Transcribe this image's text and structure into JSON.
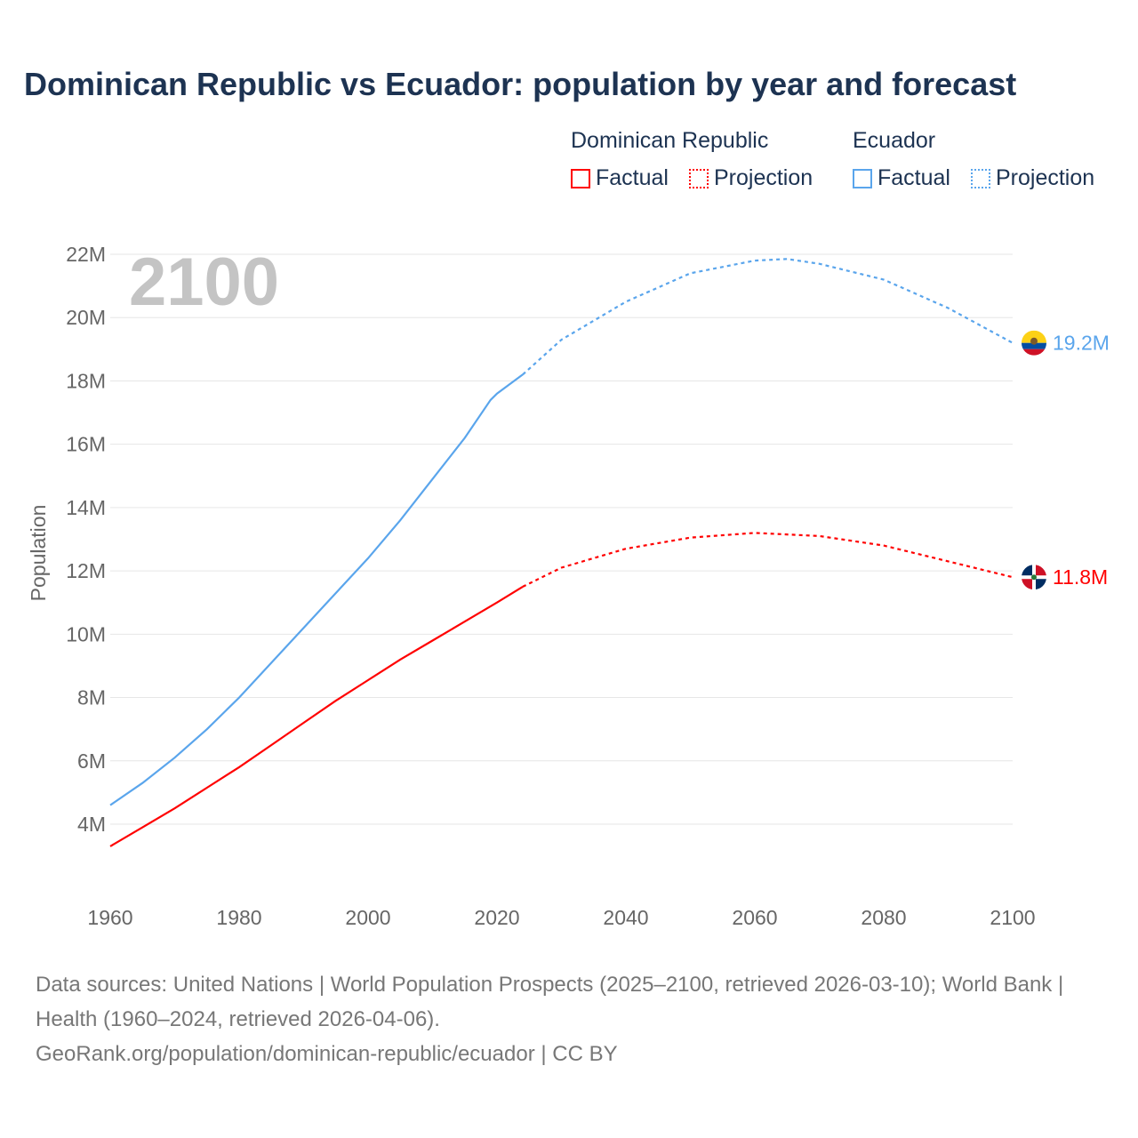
{
  "title": "Dominican Republic vs Ecuador: population by year and forecast",
  "legend": {
    "groups": [
      {
        "name": "Dominican Republic",
        "color": "#ff0000",
        "items": [
          "Factual",
          "Projection"
        ]
      },
      {
        "name": "Ecuador",
        "color": "#5aa5ec",
        "items": [
          "Factual",
          "Projection"
        ]
      }
    ]
  },
  "year_label": "2100",
  "footer": {
    "sources": "Data sources: United Nations | World Population Prospects (2025–2100, retrieved 2026-03-10); World Bank | Health (1960–2024, retrieved 2026-04-06).",
    "credit": "GeoRank.org/population/dominican-republic/ecuador | CC BY"
  },
  "chart_data": {
    "type": "line",
    "title": "Dominican Republic vs Ecuador: population by year and forecast",
    "xlabel": "",
    "ylabel": "Population",
    "xlim": [
      1960,
      2100
    ],
    "ylim": [
      2,
      22
    ],
    "x_ticks": [
      "1960",
      "1980",
      "2000",
      "2020",
      "2040",
      "2060",
      "2080",
      "2100"
    ],
    "y_ticks": [
      "4M",
      "6M",
      "8M",
      "10M",
      "12M",
      "14M",
      "16M",
      "18M",
      "20M",
      "22M"
    ],
    "grid": true,
    "legend_placement": "top-right",
    "series": [
      {
        "name": "Ecuador",
        "color": "#5aa5ec",
        "end_label": "19.2M",
        "factual": {
          "x": [
            1960,
            1965,
            1970,
            1975,
            1980,
            1985,
            1990,
            1995,
            2000,
            2005,
            2010,
            2015,
            2019,
            2020,
            2024
          ],
          "y": [
            4.6,
            5.3,
            6.1,
            7.0,
            8.0,
            9.1,
            10.2,
            11.3,
            12.4,
            13.6,
            14.9,
            16.2,
            17.4,
            17.6,
            18.2
          ]
        },
        "projection": {
          "x": [
            2024,
            2030,
            2040,
            2050,
            2060,
            2065,
            2070,
            2080,
            2090,
            2100
          ],
          "y": [
            18.2,
            19.3,
            20.5,
            21.4,
            21.8,
            21.85,
            21.7,
            21.2,
            20.3,
            19.2
          ]
        }
      },
      {
        "name": "Dominican Republic",
        "color": "#ff0000",
        "end_label": "11.8M",
        "factual": {
          "x": [
            1960,
            1965,
            1970,
            1975,
            1980,
            1985,
            1990,
            1995,
            2000,
            2005,
            2010,
            2015,
            2020,
            2024
          ],
          "y": [
            3.3,
            3.9,
            4.5,
            5.15,
            5.8,
            6.5,
            7.2,
            7.9,
            8.55,
            9.2,
            9.8,
            10.4,
            11.0,
            11.5
          ]
        },
        "projection": {
          "x": [
            2024,
            2030,
            2040,
            2050,
            2060,
            2070,
            2080,
            2090,
            2100
          ],
          "y": [
            11.5,
            12.1,
            12.7,
            13.05,
            13.2,
            13.1,
            12.8,
            12.3,
            11.8
          ]
        }
      }
    ]
  }
}
